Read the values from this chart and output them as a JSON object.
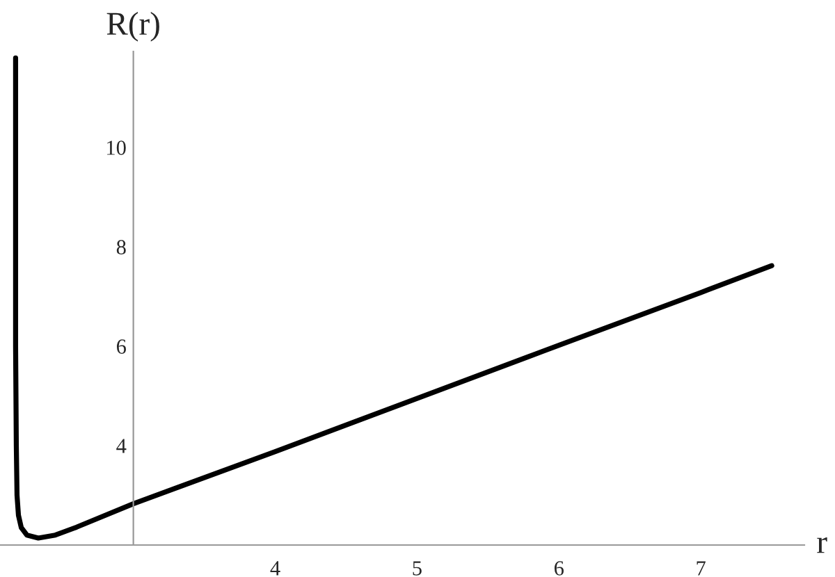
{
  "chart_data": {
    "type": "line",
    "xlabel": "r",
    "ylabel": "R(r)",
    "x": [
      2.17,
      2.17,
      2.17,
      2.175,
      2.18,
      2.19,
      2.21,
      2.25,
      2.33,
      2.45,
      2.6,
      3,
      4,
      5,
      6,
      7,
      7.5
    ],
    "series": [
      {
        "color": "#000000",
        "values": [
          11.8,
          9,
          6,
          4,
          3,
          2.6,
          2.35,
          2.2,
          2.14,
          2.2,
          2.36,
          2.83,
          3.88,
          4.95,
          6.02,
          7.08,
          7.62
        ]
      }
    ],
    "xlim": [
      2.06,
      7.73
    ],
    "ylim": [
      2.0,
      11.93
    ],
    "xticks": [
      4,
      5,
      6,
      7
    ],
    "yticks": [
      4,
      6,
      8,
      10
    ],
    "grid": false,
    "legend": false,
    "line_style": "solid",
    "marker": "none"
  }
}
